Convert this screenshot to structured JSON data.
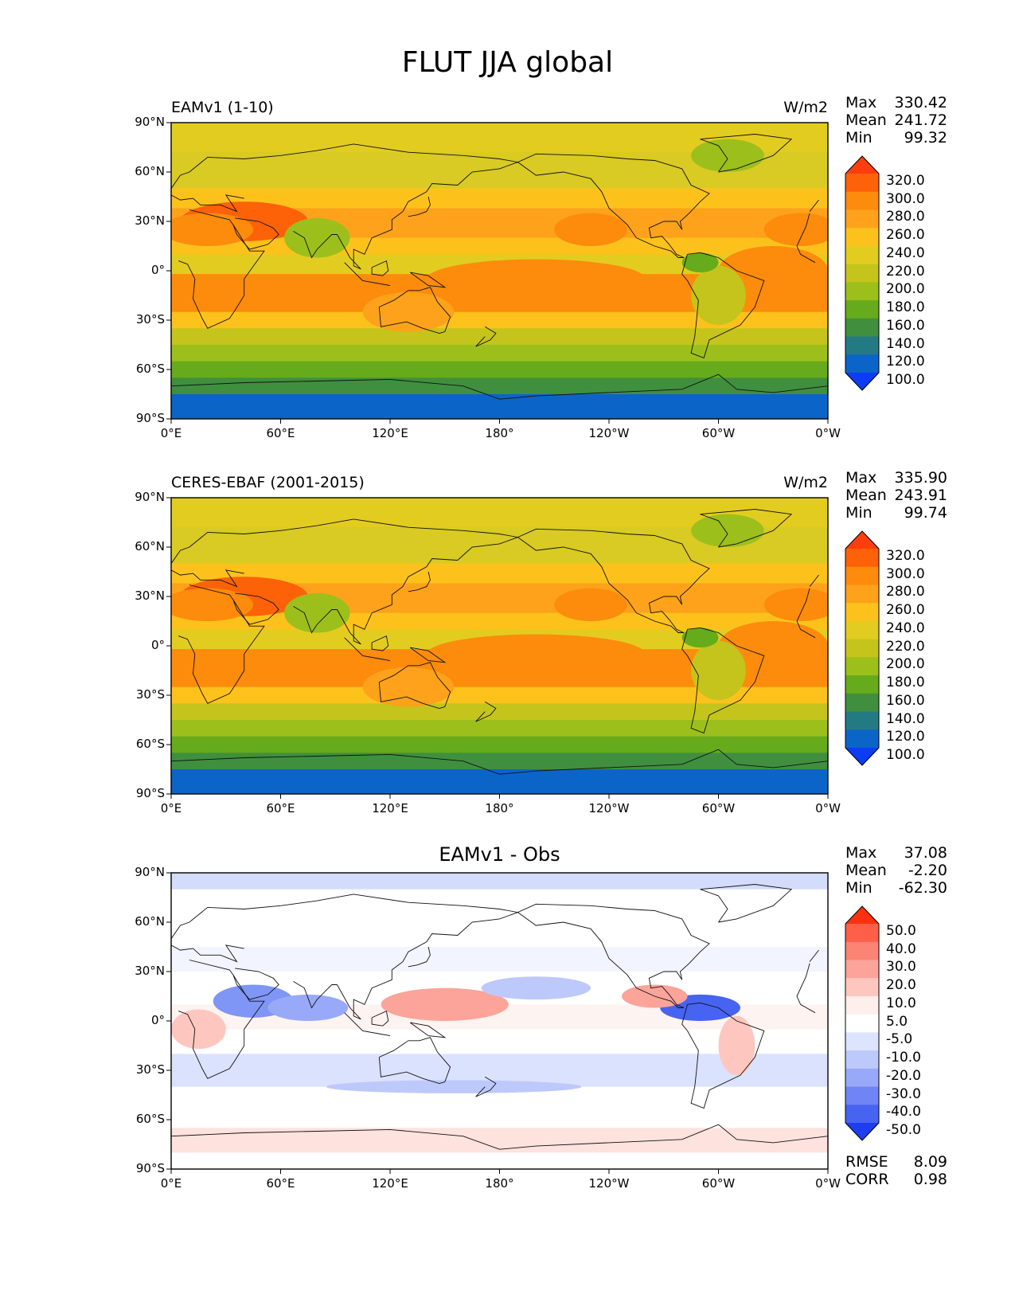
{
  "figure_title": "FLUT JJA global",
  "lat_ticks": [
    "90°N",
    "60°N",
    "30°N",
    "0°",
    "30°S",
    "60°S",
    "90°S"
  ],
  "lon_ticks": [
    "0°E",
    "60°E",
    "120°E",
    "180°",
    "120°W",
    "60°W",
    "0°W"
  ],
  "panels": [
    {
      "title": "EAMv1 (1-10)",
      "units": "W/m2",
      "stats": {
        "max_label": "Max",
        "max": "330.42",
        "mean_label": "Mean",
        "mean": "241.72",
        "min_label": "Min",
        "min": "99.32"
      },
      "colorbar": {
        "labels": [
          "320.0",
          "300.0",
          "280.0",
          "260.0",
          "240.0",
          "220.0",
          "200.0",
          "180.0",
          "160.0",
          "140.0",
          "120.0",
          "100.0"
        ],
        "colors": [
          "#ff3d0d",
          "#fd6208",
          "#fd8b0c",
          "#fda21a",
          "#fcc21b",
          "#e3cc20",
          "#c4c41c",
          "#9cbf1c",
          "#66ab1b",
          "#3f8f3f",
          "#237a83",
          "#0b64c8",
          "#0d3cf5"
        ]
      }
    },
    {
      "title": "CERES-EBAF (2001-2015)",
      "units": "W/m2",
      "stats": {
        "max_label": "Max",
        "max": "335.90",
        "mean_label": "Mean",
        "mean": "243.91",
        "min_label": "Min",
        "min": "99.74"
      },
      "colorbar": {
        "labels": [
          "320.0",
          "300.0",
          "280.0",
          "260.0",
          "240.0",
          "220.0",
          "200.0",
          "180.0",
          "160.0",
          "140.0",
          "120.0",
          "100.0"
        ],
        "colors": [
          "#ff3d0d",
          "#fd6208",
          "#fd8b0c",
          "#fda21a",
          "#fcc21b",
          "#e3cc20",
          "#c4c41c",
          "#9cbf1c",
          "#66ab1b",
          "#3f8f3f",
          "#237a83",
          "#0b64c8",
          "#0d3cf5"
        ]
      }
    },
    {
      "title": "EAMv1 - Obs",
      "units": "",
      "stats": {
        "max_label": "Max",
        "max": "37.08",
        "mean_label": "Mean",
        "mean": "-2.20",
        "min_label": "Min",
        "min": "-62.30"
      },
      "colorbar": {
        "labels": [
          "50.0",
          "40.0",
          "30.0",
          "20.0",
          "10.0",
          "5.0",
          "-5.0",
          "-10.0",
          "-20.0",
          "-30.0",
          "-40.0",
          "-50.0"
        ],
        "colors": [
          "#ff3010",
          "#fd5f48",
          "#fb8474",
          "#fca49a",
          "#fdc7c0",
          "#feeeec",
          "#ffffff",
          "#dde4fd",
          "#bdc9fb",
          "#97a9f8",
          "#6f85f5",
          "#4763f2",
          "#1d3ef0"
        ]
      },
      "rmse_label": "RMSE",
      "rmse": "8.09",
      "corr_label": "CORR",
      "corr": "0.98"
    }
  ]
}
